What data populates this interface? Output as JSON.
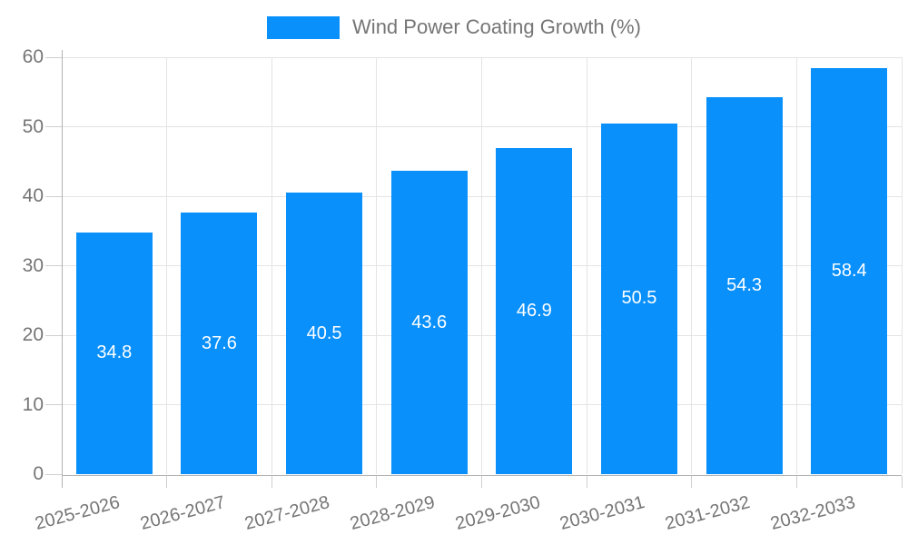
{
  "legend": {
    "label": "Wind Power Coating Growth (%)"
  },
  "chart_data": {
    "type": "bar",
    "title": "Wind Power Coating Growth (%)",
    "series_name": "Wind Power Coating Growth (%)",
    "categories": [
      "2025-2026",
      "2026-2027",
      "2027-2028",
      "2028-2029",
      "2029-2030",
      "2030-2031",
      "2031-2032",
      "2032-2033"
    ],
    "values": [
      34.8,
      37.6,
      40.5,
      43.6,
      46.9,
      50.5,
      54.3,
      58.4
    ],
    "xlabel": "",
    "ylabel": "",
    "ylim": [
      0,
      60
    ],
    "y_ticks": [
      0,
      10,
      20,
      30,
      40,
      50,
      60
    ],
    "grid": true,
    "legend_position": "top-center",
    "value_label_position": "inside-center",
    "x_label_rotation_deg": -15,
    "colors": {
      "bar": "#0990fb",
      "grid": "#e4e4e4",
      "axis": "#b3b3b3",
      "tick": "#cfcfcf",
      "text": "#757575",
      "value_label": "#ffffff",
      "background": "#ffffff"
    }
  }
}
